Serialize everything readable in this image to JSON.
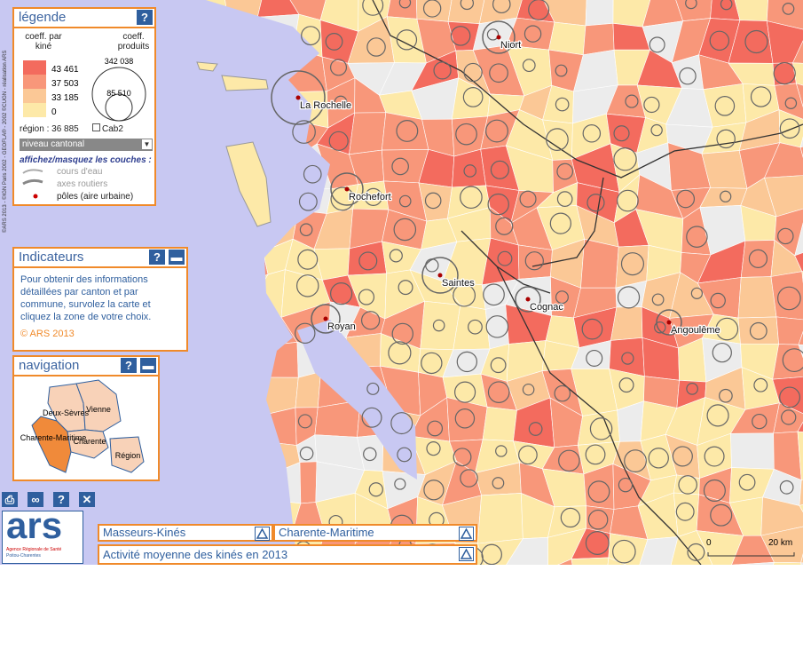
{
  "legend": {
    "title": "légende",
    "fill_label": "coeff. par kiné",
    "circle_label": "coeff. produits",
    "classes": [
      "43 461",
      "37 503",
      "33 185",
      "0"
    ],
    "circles": [
      "342 038",
      "85 510"
    ],
    "region": "région : 36 885",
    "checkbox": "Cab2",
    "level": "niveau cantonal",
    "layers_title": "affichez/masquez les couches :",
    "layers": [
      "cours d'eau",
      "axes routiers",
      "pôles (aire urbaine)"
    ]
  },
  "indicators": {
    "title": "Indicateurs",
    "text": "Pour obtenir des informations détaillées par canton et par commune, survolez la carte et cliquez la zone de votre choix.",
    "copyright": "© ARS 2013"
  },
  "navigation": {
    "title": "navigation",
    "regions": [
      "Deux-Sèvres",
      "Vienne",
      "Charente-Maritime",
      "Charente",
      "Région"
    ]
  },
  "map": {
    "cities": [
      "Niort",
      "La Rochelle",
      "Rochefort",
      "Saintes",
      "Cognac",
      "Royan",
      "Angoulême"
    ],
    "scale": [
      "0",
      "20 km"
    ],
    "credits": "©ARS 2013 - ©IGN Paris 2002 - GEOFLA® - 2002 ©CUGN - réalisation ARS"
  },
  "logo": {
    "name": "ars",
    "agency": "Agence Régionale de Santé",
    "region": "Poitou-Charentes"
  },
  "selectors": {
    "theme": "Masseurs-Kinés",
    "territory": "Charente-Maritime",
    "indicator": "Activité moyenne des kinés en 2013"
  }
}
